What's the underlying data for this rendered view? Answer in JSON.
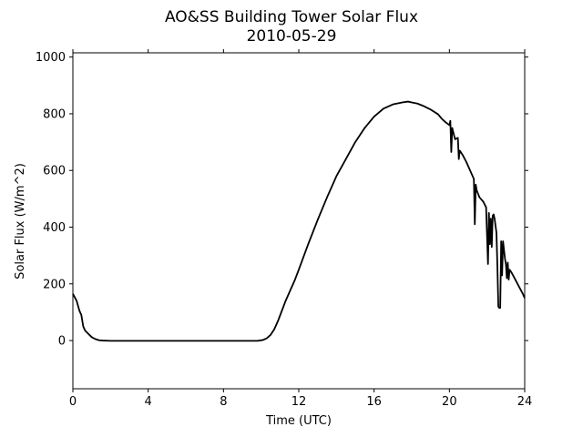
{
  "chart_data": {
    "type": "line",
    "title": "AO&SS Building Tower Solar Flux",
    "subtitle": "2010-05-29",
    "xlabel": "Time (UTC)",
    "ylabel": "Solar Flux (W/m^2)",
    "xlim": [
      0,
      24
    ],
    "ylim": [
      -170,
      1015
    ],
    "xticks": [
      0,
      4,
      8,
      12,
      16,
      20,
      24
    ],
    "yticks": [
      0,
      200,
      400,
      600,
      800,
      1000
    ],
    "grid": false,
    "legend": "none",
    "line_color": "#000000",
    "series": [
      {
        "x": [
          0,
          0.2,
          0.35,
          0.45,
          0.55,
          0.65,
          0.8,
          1.0,
          1.2,
          1.4,
          1.6,
          2.0,
          3.0,
          4.0,
          5.0,
          6.0,
          7.0,
          8.0,
          9.0,
          9.8,
          10.1,
          10.3,
          10.5,
          10.7,
          10.9,
          11.1,
          11.3,
          11.5,
          11.8,
          12.0,
          12.5,
          13.0,
          13.5,
          14.0,
          14.5,
          15.0,
          15.5,
          16.0,
          16.5,
          17.0,
          17.5,
          17.8,
          18.0,
          18.3,
          18.6,
          19.0,
          19.4,
          19.6,
          19.8,
          20.0,
          20.05,
          20.1,
          20.15,
          20.3,
          20.45,
          20.5,
          20.55,
          20.7,
          20.9,
          21.1,
          21.3,
          21.35,
          21.4,
          21.45,
          21.6,
          21.8,
          21.95,
          22.05,
          22.1,
          22.15,
          22.2,
          22.25,
          22.3,
          22.35,
          22.4,
          22.5,
          22.55,
          22.6,
          22.65,
          22.7,
          22.75,
          22.8,
          22.85,
          22.9,
          22.95,
          23.0,
          23.05,
          23.1,
          23.15,
          23.2,
          23.3,
          23.5,
          23.7,
          23.9,
          24.0
        ],
        "y": [
          165,
          140,
          105,
          90,
          50,
          35,
          25,
          12,
          5,
          1,
          0,
          -1,
          -1,
          -1,
          -1,
          -1,
          -1,
          -1,
          -1,
          -1,
          2,
          8,
          20,
          40,
          70,
          105,
          140,
          170,
          215,
          250,
          340,
          425,
          505,
          580,
          640,
          700,
          750,
          790,
          818,
          833,
          840,
          843,
          840,
          836,
          828,
          815,
          798,
          782,
          770,
          760,
          775,
          665,
          750,
          710,
          715,
          640,
          670,
          655,
          630,
          600,
          570,
          410,
          550,
          530,
          505,
          490,
          470,
          270,
          450,
          340,
          430,
          330,
          440,
          445,
          430,
          380,
          260,
          120,
          115,
          115,
          350,
          230,
          350,
          320,
          290,
          270,
          220,
          275,
          215,
          250,
          240,
          215,
          190,
          165,
          150
        ]
      }
    ]
  }
}
